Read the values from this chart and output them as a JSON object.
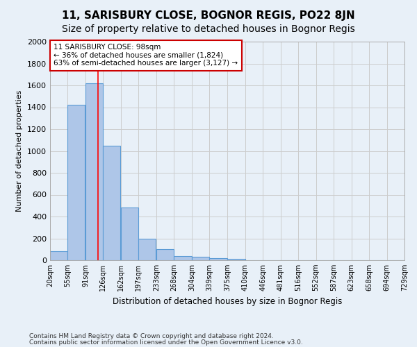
{
  "title": "11, SARISBURY CLOSE, BOGNOR REGIS, PO22 8JN",
  "subtitle": "Size of property relative to detached houses in Bognor Regis",
  "xlabel_bottom": "Distribution of detached houses by size in Bognor Regis",
  "ylabel": "Number of detached properties",
  "annotation_line1": "11 SARISBURY CLOSE: 98sqm",
  "annotation_line2": "← 36% of detached houses are smaller (1,824)",
  "annotation_line3": "63% of semi-detached houses are larger (3,127) →",
  "footer_line1": "Contains HM Land Registry data © Crown copyright and database right 2024.",
  "footer_line2": "Contains public sector information licensed under the Open Government Licence v3.0.",
  "bin_centers": [
    20,
    55,
    91,
    126,
    162,
    197,
    233,
    268,
    304,
    339,
    375,
    410,
    446,
    481,
    516,
    552,
    587,
    623,
    658,
    694
  ],
  "bin_width": 35,
  "tick_labels": [
    "20sqm",
    "55sqm",
    "91sqm",
    "126sqm",
    "162sqm",
    "197sqm",
    "233sqm",
    "268sqm",
    "304sqm",
    "339sqm",
    "375sqm",
    "410sqm",
    "446sqm",
    "481sqm",
    "516sqm",
    "552sqm",
    "587sqm",
    "623sqm",
    "658sqm",
    "694sqm",
    "729sqm"
  ],
  "bar_heights": [
    85,
    1420,
    1620,
    1050,
    480,
    200,
    100,
    40,
    30,
    20,
    15,
    0,
    0,
    0,
    0,
    0,
    0,
    0,
    0,
    0
  ],
  "bar_color": "#aec6e8",
  "bar_edge_color": "#5b9bd5",
  "red_line_x": 98,
  "ylim": [
    0,
    2000
  ],
  "yticks": [
    0,
    200,
    400,
    600,
    800,
    1000,
    1200,
    1400,
    1600,
    1800,
    2000
  ],
  "grid_color": "#cccccc",
  "bg_color": "#e8f0f8",
  "annotation_box_color": "#ffffff",
  "annotation_box_edge": "#cc0000",
  "title_fontsize": 11,
  "subtitle_fontsize": 10
}
